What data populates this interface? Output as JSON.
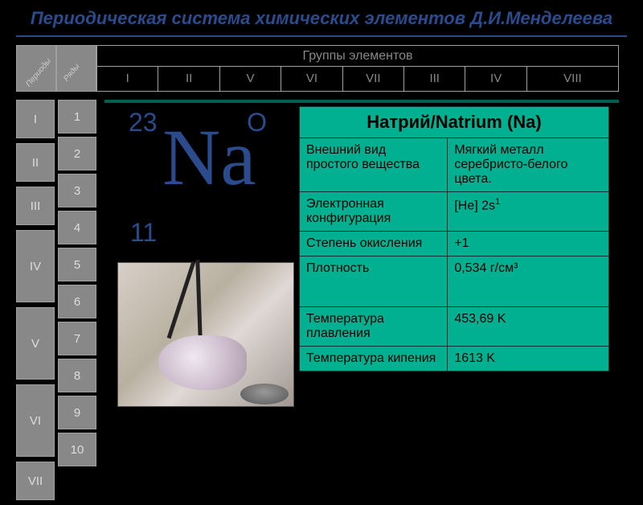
{
  "title": "Периодическая система химических элементов Д.И.Менделеева",
  "colors": {
    "page_bg": "#000000",
    "title_color": "#2b4b8c",
    "divider": "#2b4b8c",
    "cell_bg": "#888888",
    "cell_border": "#a0a0a0",
    "cell_text": "#dddddd",
    "panel_bg": "#00b090",
    "panel_border": "#006050",
    "table_border": "#003030",
    "element_text": "#2b4b8c"
  },
  "diag_labels": [
    "Периоды",
    "Ряды"
  ],
  "group_header": {
    "title": "Группы элементов",
    "cols": [
      "I",
      "II",
      "V",
      "VI",
      "VII",
      "III",
      "IV",
      "VIII"
    ]
  },
  "periods": [
    "I",
    "II",
    "III",
    "IV",
    "V",
    "VI",
    "VII"
  ],
  "rows": [
    "1",
    "2",
    "3",
    "4",
    "5",
    "6",
    "7",
    "8",
    "9",
    "10"
  ],
  "element": {
    "mass": "23",
    "ox_marker": "O",
    "symbol": "Na",
    "atomic_number": "11"
  },
  "info": {
    "title": "Натрий/Natrium (Na)",
    "items": [
      {
        "key": "Внешний вид простого вещества",
        "val": "Мягкий металл серебристо-белого цвета.",
        "tall": true
      },
      {
        "key": "Электронная конфигурация",
        "val_html": "[He] 2s<sup>1</sup>"
      },
      {
        "key": "Степень окисления",
        "val": "+1"
      },
      {
        "key": "Плотность",
        "val": "0,534 г/см³",
        "tall": true
      },
      {
        "key": "Температура плавления",
        "val": "453,69 K"
      },
      {
        "key": "Температура кипения",
        "val": "1613 K"
      }
    ]
  }
}
